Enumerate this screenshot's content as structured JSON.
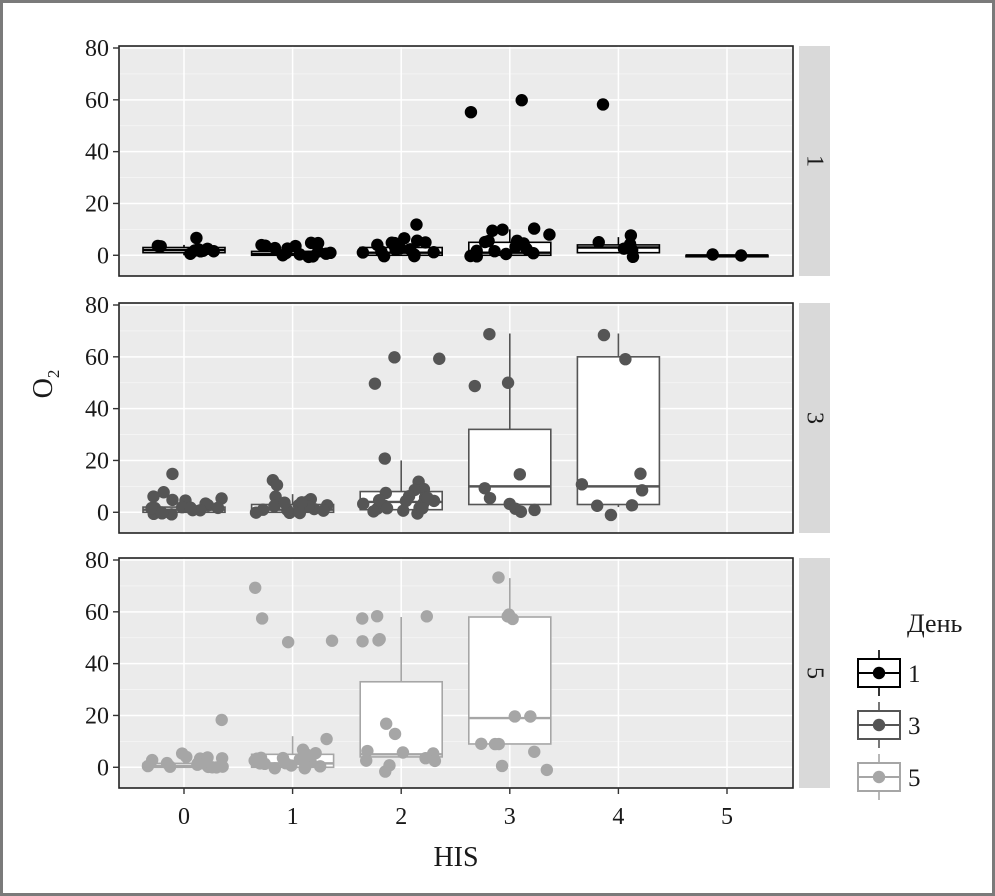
{
  "chart_data": {
    "type": "box+jitter",
    "xlabel": "HIS",
    "ylabel": "O",
    "ylabel_subscript": "2",
    "x_categories": [
      "0",
      "1",
      "2",
      "3",
      "4",
      "5"
    ],
    "ylim": [
      -8,
      80
    ],
    "y_ticks": [
      0,
      20,
      40,
      60,
      80
    ],
    "grid": true,
    "facet_by": "День",
    "legend": {
      "title": "День",
      "position": "right",
      "entries": [
        "1",
        "3",
        "5"
      ]
    },
    "colors": {
      "1": "#000000",
      "3": "#555555",
      "5": "#a6a6a6"
    },
    "panels": [
      {
        "strip": "1",
        "boxes": [
          {
            "x": 0,
            "lower": 0,
            "q1": 1,
            "median": 2,
            "q3": 3,
            "upper": 4
          },
          {
            "x": 1,
            "lower": 0,
            "q1": 0,
            "median": 0.5,
            "q3": 1.5,
            "upper": 3
          },
          {
            "x": 2,
            "lower": 0,
            "q1": 0,
            "median": 1,
            "q3": 3,
            "upper": 6
          },
          {
            "x": 3,
            "lower": 0,
            "q1": 0,
            "median": 1,
            "q3": 5,
            "upper": 10
          },
          {
            "x": 4,
            "lower": 1,
            "q1": 1,
            "median": 3,
            "q3": 4,
            "upper": 7
          },
          {
            "x": 5,
            "lower": 0,
            "q1": 0,
            "median": 0,
            "q3": 0,
            "upper": 0
          }
        ],
        "points": [
          [
            0,
            7
          ],
          [
            0,
            1
          ],
          [
            0,
            2
          ],
          [
            0,
            3
          ],
          [
            0,
            1
          ],
          [
            0,
            2
          ],
          [
            0,
            3
          ],
          [
            0,
            1
          ],
          [
            0,
            3
          ],
          [
            0,
            1
          ],
          [
            1,
            4
          ],
          [
            1,
            5
          ],
          [
            1,
            3
          ],
          [
            1,
            0
          ],
          [
            1,
            1
          ],
          [
            1,
            2
          ],
          [
            1,
            4
          ],
          [
            1,
            0
          ],
          [
            1,
            1
          ],
          [
            1,
            0
          ],
          [
            1,
            2
          ],
          [
            1,
            5
          ],
          [
            1,
            3
          ],
          [
            1,
            0
          ],
          [
            1,
            1
          ],
          [
            2,
            12
          ],
          [
            2,
            6
          ],
          [
            2,
            5
          ],
          [
            2,
            4
          ],
          [
            2,
            3
          ],
          [
            2,
            2
          ],
          [
            2,
            1
          ],
          [
            2,
            0
          ],
          [
            2,
            4
          ],
          [
            2,
            5
          ],
          [
            2,
            6
          ],
          [
            2,
            2
          ],
          [
            2,
            1
          ],
          [
            2,
            3
          ],
          [
            2,
            0
          ],
          [
            2,
            2
          ],
          [
            2,
            4
          ],
          [
            2,
            1
          ],
          [
            3,
            55
          ],
          [
            3,
            60
          ],
          [
            3,
            10
          ],
          [
            3,
            9
          ],
          [
            3,
            8
          ],
          [
            3,
            5
          ],
          [
            3,
            4
          ],
          [
            3,
            3
          ],
          [
            3,
            1
          ],
          [
            3,
            0
          ],
          [
            3,
            0
          ],
          [
            3,
            1
          ],
          [
            3,
            5
          ],
          [
            3,
            10
          ],
          [
            3,
            0
          ],
          [
            3,
            2
          ],
          [
            3,
            0
          ],
          [
            3,
            5
          ],
          [
            4,
            59
          ],
          [
            4,
            5
          ],
          [
            4,
            4
          ],
          [
            4,
            2
          ],
          [
            4,
            7
          ],
          [
            4,
            0
          ],
          [
            4,
            3
          ],
          [
            5,
            0
          ],
          [
            5,
            0
          ]
        ]
      },
      {
        "strip": "3",
        "boxes": [
          {
            "x": 0,
            "lower": 0,
            "q1": 0,
            "median": 1,
            "q3": 2,
            "upper": 5
          },
          {
            "x": 1,
            "lower": 0,
            "q1": 0,
            "median": 1,
            "q3": 3,
            "upper": 7
          },
          {
            "x": 2,
            "lower": 0,
            "q1": 1,
            "median": 4,
            "q3": 8,
            "upper": 20
          },
          {
            "x": 3,
            "lower": 2,
            "q1": 3,
            "median": 10,
            "q3": 32,
            "upper": 69
          },
          {
            "x": 4,
            "lower": 2,
            "q1": 3,
            "median": 10,
            "q3": 60,
            "upper": 69
          }
        ],
        "points": [
          [
            0,
            15
          ],
          [
            0,
            8
          ],
          [
            0,
            6
          ],
          [
            0,
            5
          ],
          [
            0,
            4
          ],
          [
            0,
            3
          ],
          [
            0,
            2
          ],
          [
            0,
            1
          ],
          [
            0,
            0
          ],
          [
            0,
            1
          ],
          [
            0,
            2
          ],
          [
            0,
            0
          ],
          [
            0,
            3
          ],
          [
            0,
            1
          ],
          [
            0,
            0
          ],
          [
            0,
            2
          ],
          [
            0,
            1
          ],
          [
            0,
            4
          ],
          [
            0,
            0
          ],
          [
            0,
            1
          ],
          [
            1,
            12
          ],
          [
            1,
            10
          ],
          [
            1,
            6
          ],
          [
            1,
            5
          ],
          [
            1,
            4
          ],
          [
            1,
            3
          ],
          [
            1,
            2
          ],
          [
            1,
            1
          ],
          [
            1,
            0
          ],
          [
            1,
            2
          ],
          [
            1,
            3
          ],
          [
            1,
            1
          ],
          [
            1,
            0
          ],
          [
            1,
            2
          ],
          [
            1,
            4
          ],
          [
            1,
            1
          ],
          [
            1,
            0
          ],
          [
            1,
            3
          ],
          [
            2,
            60
          ],
          [
            2,
            60
          ],
          [
            2,
            49
          ],
          [
            2,
            20
          ],
          [
            2,
            11
          ],
          [
            2,
            9
          ],
          [
            2,
            8
          ],
          [
            2,
            7
          ],
          [
            2,
            6
          ],
          [
            2,
            5
          ],
          [
            2,
            4
          ],
          [
            2,
            3
          ],
          [
            2,
            2
          ],
          [
            2,
            1
          ],
          [
            2,
            0
          ],
          [
            2,
            2
          ],
          [
            2,
            4
          ],
          [
            2,
            6
          ],
          [
            2,
            1
          ],
          [
            2,
            3
          ],
          [
            2,
            0
          ],
          [
            2,
            5
          ],
          [
            2,
            2
          ],
          [
            2,
            1
          ],
          [
            3,
            69
          ],
          [
            3,
            50
          ],
          [
            3,
            49
          ],
          [
            3,
            14
          ],
          [
            3,
            10
          ],
          [
            3,
            5
          ],
          [
            3,
            3
          ],
          [
            3,
            2
          ],
          [
            3,
            1
          ],
          [
            3,
            0
          ],
          [
            4,
            69
          ],
          [
            4,
            59
          ],
          [
            4,
            15
          ],
          [
            4,
            10
          ],
          [
            4,
            8
          ],
          [
            4,
            3
          ],
          [
            4,
            2
          ],
          [
            4,
            -1
          ]
        ]
      },
      {
        "strip": "5",
        "boxes": [
          {
            "x": 0,
            "lower": 0,
            "q1": 0,
            "median": 0.5,
            "q3": 1.5,
            "upper": 3
          },
          {
            "x": 1,
            "lower": 0,
            "q1": 0,
            "median": 1.5,
            "q3": 5,
            "upper": 12
          },
          {
            "x": 2,
            "lower": 4,
            "q1": 4,
            "median": 5,
            "q3": 33,
            "upper": 58
          },
          {
            "x": 3,
            "lower": 9,
            "q1": 9,
            "median": 19,
            "q3": 58,
            "upper": 73
          }
        ],
        "points": [
          [
            0,
            18
          ],
          [
            0,
            5
          ],
          [
            0,
            4
          ],
          [
            0,
            3
          ],
          [
            0,
            2
          ],
          [
            0,
            1
          ],
          [
            0,
            0
          ],
          [
            0,
            1
          ],
          [
            0,
            2
          ],
          [
            0,
            0
          ],
          [
            0,
            3
          ],
          [
            0,
            1
          ],
          [
            0,
            0
          ],
          [
            0,
            2
          ],
          [
            0,
            4
          ],
          [
            0,
            1
          ],
          [
            0,
            0
          ],
          [
            1,
            69
          ],
          [
            1,
            58
          ],
          [
            1,
            49
          ],
          [
            1,
            49
          ],
          [
            1,
            11
          ],
          [
            1,
            6
          ],
          [
            1,
            5
          ],
          [
            1,
            4
          ],
          [
            1,
            3
          ],
          [
            1,
            2
          ],
          [
            1,
            1
          ],
          [
            1,
            0
          ],
          [
            1,
            2
          ],
          [
            1,
            3
          ],
          [
            1,
            1
          ],
          [
            1,
            0
          ],
          [
            1,
            2
          ],
          [
            1,
            4
          ],
          [
            1,
            1
          ],
          [
            1,
            0
          ],
          [
            1,
            3
          ],
          [
            1,
            5
          ],
          [
            2,
            58
          ],
          [
            2,
            58
          ],
          [
            2,
            58
          ],
          [
            2,
            49
          ],
          [
            2,
            49
          ],
          [
            2,
            49
          ],
          [
            2,
            17
          ],
          [
            2,
            13
          ],
          [
            2,
            7
          ],
          [
            2,
            6
          ],
          [
            2,
            5
          ],
          [
            2,
            4
          ],
          [
            2,
            3
          ],
          [
            2,
            2
          ],
          [
            2,
            0
          ],
          [
            2,
            -1
          ],
          [
            3,
            73
          ],
          [
            3,
            59
          ],
          [
            3,
            58
          ],
          [
            3,
            58
          ],
          [
            3,
            19
          ],
          [
            3,
            19
          ],
          [
            3,
            9
          ],
          [
            3,
            9
          ],
          [
            3,
            9
          ],
          [
            3,
            6
          ],
          [
            3,
            0
          ],
          [
            3,
            -1
          ]
        ]
      }
    ]
  }
}
